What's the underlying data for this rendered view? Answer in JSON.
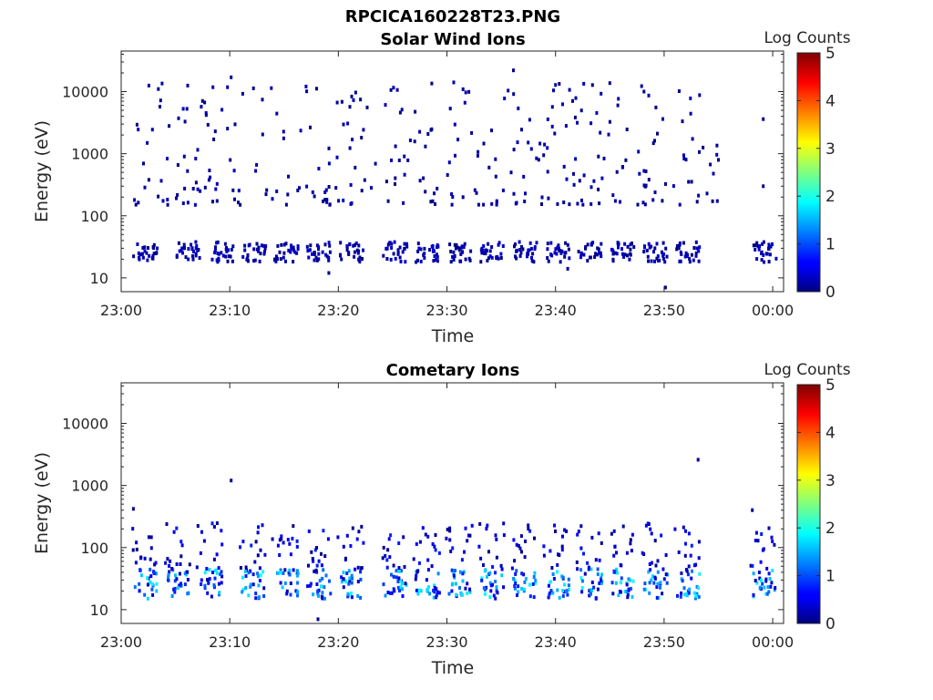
{
  "figure_title": "RPCICA160228T23.PNG",
  "chart_data": [
    {
      "type": "heatmap",
      "title": "Solar Wind Ions",
      "xlabel": "Time",
      "ylabel": "Energy (eV)",
      "x_ticks": [
        "23:00",
        "23:10",
        "23:20",
        "23:30",
        "23:40",
        "23:50",
        "00:00"
      ],
      "x_range": [
        "23:00",
        "00:01"
      ],
      "y_scale": "log",
      "y_ticks": [
        "10",
        "100",
        "1000",
        "10000"
      ],
      "y_range": [
        6,
        45000
      ],
      "colorbar_label": "Log Counts",
      "colorbar_ticks": [
        "0",
        "1",
        "2",
        "3",
        "4",
        "5"
      ],
      "colorbar_range": [
        0,
        5
      ],
      "colormap": "jet",
      "low_band": {
        "energy_range_eV": [
          18,
          38
        ],
        "log_counts": [
          0,
          0.4
        ],
        "burst_times": [
          "23:02",
          "23:06",
          "23:09",
          "23:12",
          "23:15",
          "23:18",
          "23:21",
          "23:25",
          "23:28",
          "23:31",
          "23:34",
          "23:37",
          "23:40",
          "23:43",
          "23:46",
          "23:49",
          "23:52",
          "23:59"
        ]
      },
      "scatter_band": {
        "energy_range_eV": [
          150,
          15000
        ],
        "log_counts": [
          0,
          0.3
        ],
        "time_range": [
          "23:01",
          "23:55"
        ]
      },
      "sparse_points": [
        {
          "time": "23:10",
          "energy": 17000
        },
        {
          "time": "23:36",
          "energy": 22000
        },
        {
          "time": "23:06",
          "energy": 12500
        },
        {
          "time": "23:59",
          "energy": 3600
        },
        {
          "time": "23:59",
          "energy": 300
        },
        {
          "time": "23:19",
          "energy": 12
        },
        {
          "time": "23:41",
          "energy": 14
        },
        {
          "time": "23:50",
          "energy": 7
        }
      ]
    },
    {
      "type": "heatmap",
      "title": "Cometary Ions",
      "xlabel": "Time",
      "ylabel": "Energy (eV)",
      "x_ticks": [
        "23:00",
        "23:10",
        "23:20",
        "23:30",
        "23:40",
        "23:50",
        "00:00"
      ],
      "x_range": [
        "23:00",
        "00:01"
      ],
      "y_scale": "log",
      "y_ticks": [
        "10",
        "100",
        "1000",
        "10000"
      ],
      "y_range": [
        6,
        45000
      ],
      "colorbar_label": "Log Counts",
      "colorbar_ticks": [
        "0",
        "1",
        "2",
        "3",
        "4",
        "5"
      ],
      "colorbar_range": [
        0,
        5
      ],
      "colormap": "jet",
      "low_band": {
        "energy_range_eV": [
          15,
          45
        ],
        "log_counts": [
          0.2,
          1.9
        ],
        "burst_times": [
          "23:02",
          "23:05",
          "23:08",
          "23:12",
          "23:15",
          "23:18",
          "23:21",
          "23:25",
          "23:28",
          "23:31",
          "23:34",
          "23:37",
          "23:40",
          "23:43",
          "23:46",
          "23:49",
          "23:52",
          "23:59"
        ]
      },
      "mid_band": {
        "energy_range_eV": [
          45,
          250
        ],
        "log_counts": [
          0,
          0.8
        ]
      },
      "sparse_points": [
        {
          "time": "23:10",
          "energy": 1200
        },
        {
          "time": "23:53",
          "energy": 2600
        },
        {
          "time": "23:01",
          "energy": 420
        },
        {
          "time": "23:58",
          "energy": 400
        },
        {
          "time": "23:18",
          "energy": 7
        }
      ]
    }
  ]
}
